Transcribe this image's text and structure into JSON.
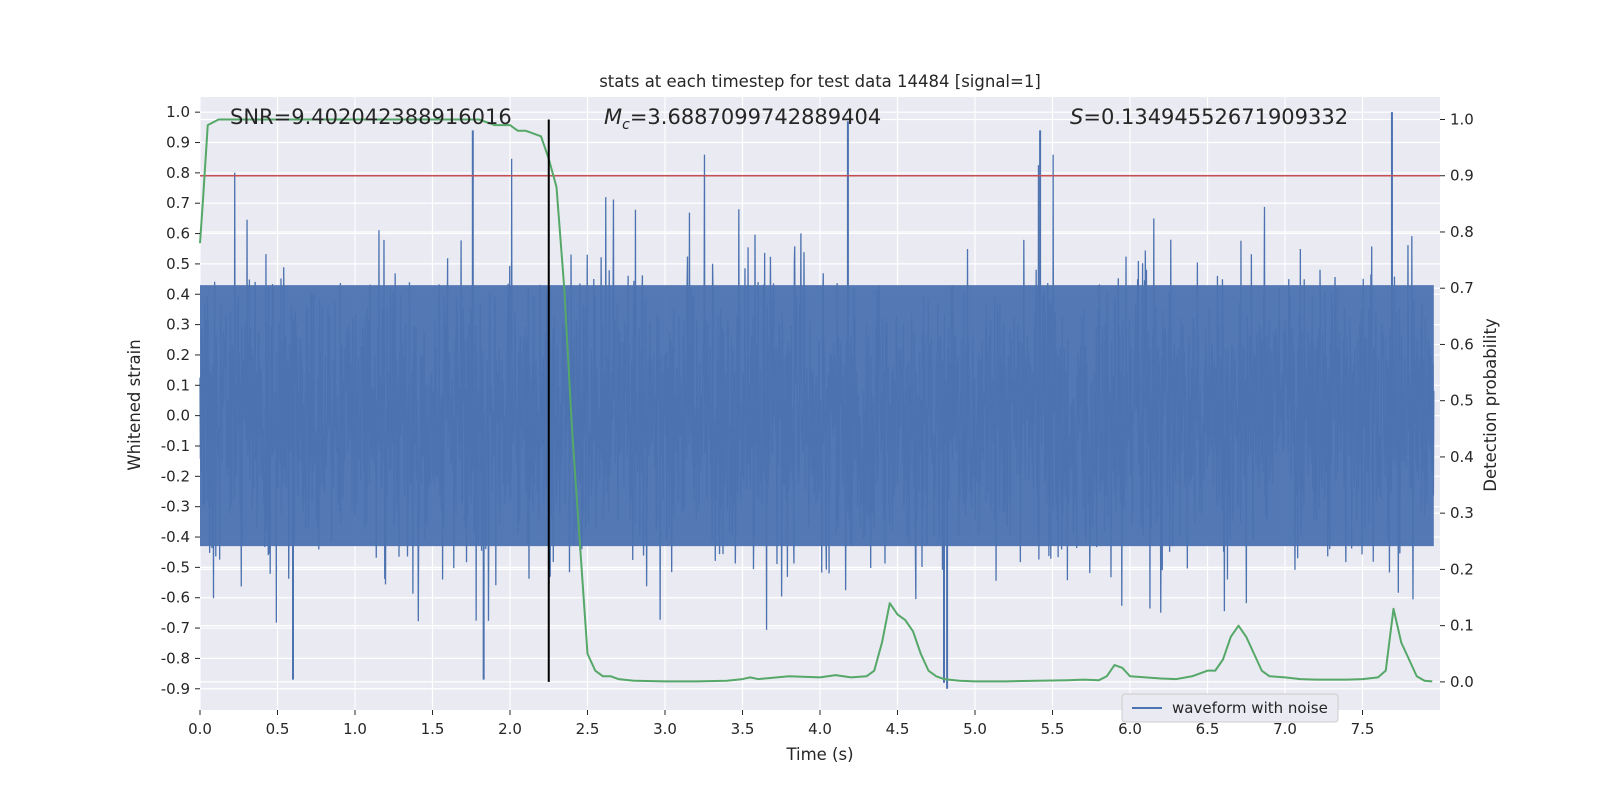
{
  "chart_data": {
    "type": "line",
    "title": "stats at each timestep for test data 14484 [signal=1]",
    "xlabel": "Time (s)",
    "ylabel": "Whitened strain",
    "ylabel_right": "Detection probability",
    "xlim": [
      0.0,
      8.0
    ],
    "ylim": [
      -0.97,
      1.05
    ],
    "ylim_right": [
      -0.05,
      1.04
    ],
    "x_ticks": [
      "0.0",
      "0.5",
      "1.0",
      "1.5",
      "2.0",
      "2.5",
      "3.0",
      "3.5",
      "4.0",
      "4.5",
      "5.0",
      "5.5",
      "6.0",
      "6.5",
      "7.0",
      "7.5"
    ],
    "x_tick_values": [
      0.0,
      0.5,
      1.0,
      1.5,
      2.0,
      2.5,
      3.0,
      3.5,
      4.0,
      4.5,
      5.0,
      5.5,
      6.0,
      6.5,
      7.0,
      7.5
    ],
    "y_ticks": [
      "1.0",
      "0.9",
      "0.8",
      "0.7",
      "0.6",
      "0.5",
      "0.4",
      "0.3",
      "0.2",
      "0.1",
      "0.0",
      "-0.1",
      "-0.2",
      "-0.3",
      "-0.4",
      "-0.5",
      "-0.6",
      "-0.7",
      "-0.8",
      "-0.9"
    ],
    "y_tick_values": [
      1.0,
      0.9,
      0.8,
      0.7,
      0.6,
      0.5,
      0.4,
      0.3,
      0.2,
      0.1,
      0.0,
      -0.1,
      -0.2,
      -0.3,
      -0.4,
      -0.5,
      -0.6,
      -0.7,
      -0.8,
      -0.9
    ],
    "y_right_ticks": [
      "1.0",
      "0.9",
      "0.8",
      "0.7",
      "0.6",
      "0.5",
      "0.4",
      "0.3",
      "0.2",
      "0.1",
      "0.0"
    ],
    "y_right_tick_values": [
      1.0,
      0.9,
      0.8,
      0.7,
      0.6,
      0.5,
      0.4,
      0.3,
      0.2,
      0.1,
      0.0
    ],
    "annotations": {
      "snr": "SNR=9.402042388916016",
      "mc_symbol": "M",
      "mc_sub": "c",
      "mc_value": "=3.6887099742889404",
      "s_symbol": "S",
      "s_value": "=0.13494552671909332"
    },
    "legend": [
      {
        "label": "waveform with noise",
        "color": "#4c72b0"
      }
    ],
    "legend_position": "lower-right",
    "threshold_line": {
      "value": 0.9,
      "axis": "right",
      "color": "#c44e52"
    },
    "vertical_marker": {
      "x": 2.25,
      "color": "#000000"
    },
    "series": [
      {
        "name": "waveform with noise",
        "axis": "left",
        "color": "#4c72b0",
        "kind": "noise",
        "n_samples": 16384,
        "core_amplitude": 0.43,
        "notable_peaks": [
          {
            "x": 1.76,
            "y": 0.94
          },
          {
            "x": 4.18,
            "y": 0.97
          },
          {
            "x": 5.42,
            "y": 0.94
          },
          {
            "x": 7.69,
            "y": 1.0
          },
          {
            "x": 0.6,
            "y": -0.87
          },
          {
            "x": 1.83,
            "y": -0.87
          },
          {
            "x": 4.8,
            "y": -0.88
          },
          {
            "x": 4.82,
            "y": -0.9
          }
        ]
      },
      {
        "name": "Detection probability",
        "axis": "right",
        "color": "#55a868",
        "x": [
          0.0,
          0.02,
          0.05,
          0.12,
          0.2,
          0.5,
          1.0,
          1.5,
          1.8,
          1.9,
          2.0,
          2.05,
          2.1,
          2.2,
          2.25,
          2.3,
          2.35,
          2.4,
          2.45,
          2.5,
          2.55,
          2.6,
          2.65,
          2.7,
          2.8,
          3.0,
          3.2,
          3.4,
          3.5,
          3.55,
          3.6,
          3.8,
          4.0,
          4.1,
          4.2,
          4.3,
          4.35,
          4.4,
          4.45,
          4.5,
          4.55,
          4.6,
          4.65,
          4.7,
          4.75,
          4.8,
          4.9,
          5.0,
          5.2,
          5.4,
          5.6,
          5.7,
          5.8,
          5.85,
          5.9,
          5.95,
          6.0,
          6.1,
          6.2,
          6.3,
          6.4,
          6.5,
          6.55,
          6.6,
          6.65,
          6.7,
          6.75,
          6.8,
          6.85,
          6.9,
          7.0,
          7.1,
          7.2,
          7.3,
          7.4,
          7.5,
          7.6,
          7.65,
          7.7,
          7.75,
          7.8,
          7.85,
          7.9,
          7.95
        ],
        "y": [
          0.78,
          0.86,
          0.99,
          1.0,
          1.0,
          1.0,
          1.0,
          1.0,
          1.0,
          0.99,
          0.99,
          0.98,
          0.98,
          0.97,
          0.93,
          0.88,
          0.7,
          0.45,
          0.25,
          0.05,
          0.02,
          0.01,
          0.01,
          0.005,
          0.002,
          0.001,
          0.001,
          0.002,
          0.005,
          0.008,
          0.005,
          0.01,
          0.008,
          0.012,
          0.008,
          0.01,
          0.02,
          0.07,
          0.14,
          0.12,
          0.11,
          0.09,
          0.05,
          0.02,
          0.01,
          0.005,
          0.002,
          0.001,
          0.001,
          0.002,
          0.003,
          0.004,
          0.003,
          0.01,
          0.03,
          0.025,
          0.01,
          0.008,
          0.006,
          0.005,
          0.01,
          0.02,
          0.02,
          0.04,
          0.08,
          0.1,
          0.08,
          0.05,
          0.02,
          0.01,
          0.008,
          0.005,
          0.004,
          0.004,
          0.004,
          0.005,
          0.008,
          0.02,
          0.13,
          0.07,
          0.04,
          0.01,
          0.002,
          0.001
        ]
      }
    ]
  }
}
